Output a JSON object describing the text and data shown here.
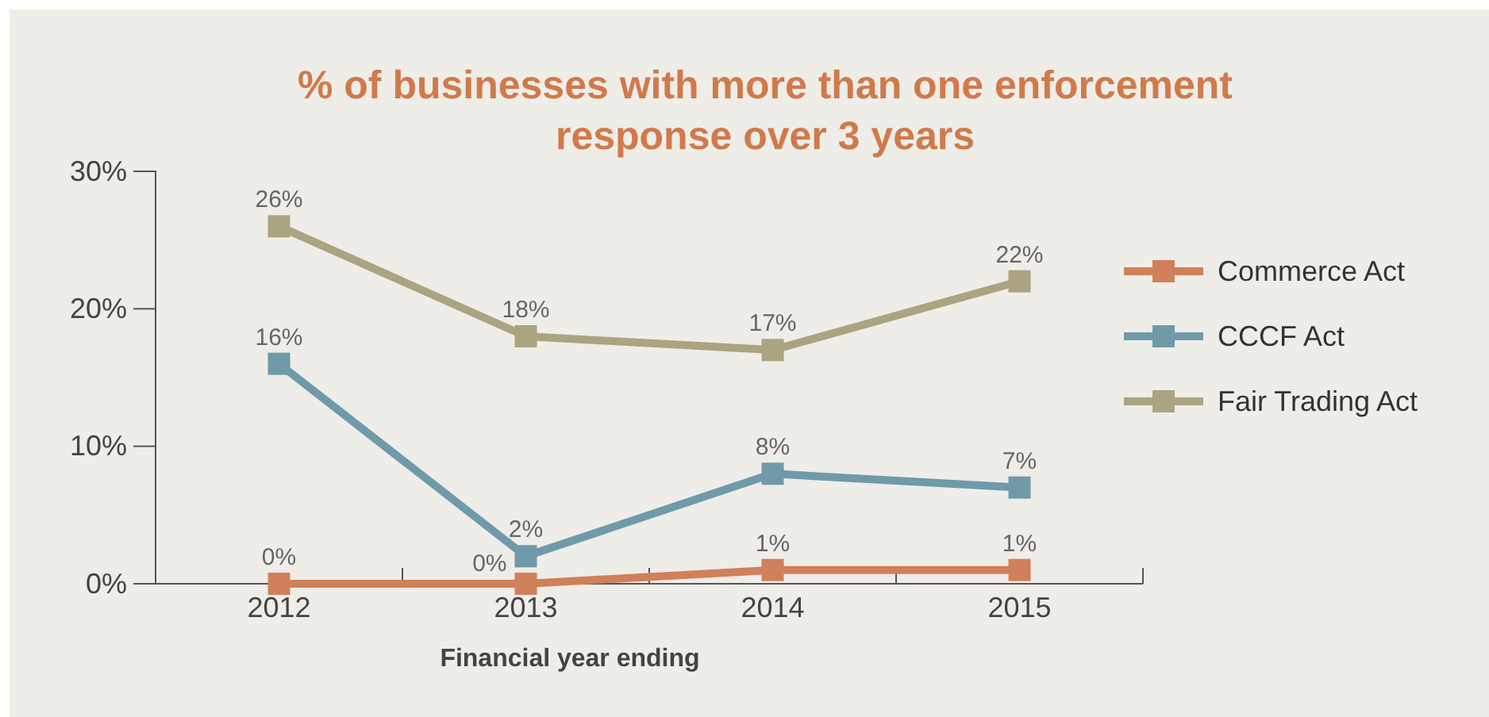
{
  "chart_data": {
    "type": "line",
    "title": "% of businesses with more than one enforcement response over 3 years",
    "xlabel": "Financial year ending",
    "categories": [
      "2012",
      "2013",
      "2014",
      "2015"
    ],
    "ylim": [
      0,
      30
    ],
    "yticks": [
      {
        "value": 0,
        "label": "0%"
      },
      {
        "value": 10,
        "label": "10%"
      },
      {
        "value": 20,
        "label": "20%"
      },
      {
        "value": 30,
        "label": "30%"
      }
    ],
    "series": [
      {
        "name": "Commerce Act",
        "color": "#d0805a",
        "values": [
          0,
          0,
          1,
          1
        ],
        "value_labels": [
          "0%",
          "0%",
          "1%",
          "1%"
        ]
      },
      {
        "name": "CCCF Act",
        "color": "#6f9aaa",
        "values": [
          16,
          2,
          8,
          7
        ],
        "value_labels": [
          "16%",
          "2%",
          "8%",
          "7%"
        ]
      },
      {
        "name": "Fair Trading Act",
        "color": "#aaa481",
        "values": [
          26,
          18,
          17,
          22
        ],
        "value_labels": [
          "26%",
          "18%",
          "17%",
          "22%"
        ]
      }
    ],
    "marker": "square",
    "line_style": "solid",
    "legend": "right",
    "grid": false
  }
}
